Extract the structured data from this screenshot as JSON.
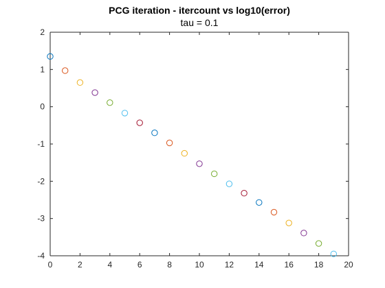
{
  "chart_data": {
    "type": "scatter",
    "title": "PCG iteration - itercount vs log10(error)",
    "subtitle": "tau = 0.1",
    "xlabel": "",
    "ylabel": "",
    "xlim": [
      0,
      20
    ],
    "ylim": [
      -4,
      2
    ],
    "xticks": [
      "0",
      "2",
      "4",
      "6",
      "8",
      "10",
      "12",
      "14",
      "16",
      "18",
      "20"
    ],
    "yticks": [
      "2",
      "1",
      "0",
      "-1",
      "-2",
      "-3",
      "-4"
    ],
    "grid": false,
    "marker": "open-circle",
    "color_cycle": [
      "#0072BD",
      "#D95319",
      "#EDB120",
      "#7E2F8E",
      "#77AC30",
      "#4DBEEE",
      "#A2142F"
    ],
    "points": [
      {
        "x": 0,
        "y": 1.35
      },
      {
        "x": 1,
        "y": 0.97
      },
      {
        "x": 2,
        "y": 0.65
      },
      {
        "x": 3,
        "y": 0.38
      },
      {
        "x": 4,
        "y": 0.11
      },
      {
        "x": 5,
        "y": -0.17
      },
      {
        "x": 6,
        "y": -0.43
      },
      {
        "x": 7,
        "y": -0.7
      },
      {
        "x": 8,
        "y": -0.97
      },
      {
        "x": 9,
        "y": -1.25
      },
      {
        "x": 10,
        "y": -1.53
      },
      {
        "x": 11,
        "y": -1.8
      },
      {
        "x": 12,
        "y": -2.07
      },
      {
        "x": 13,
        "y": -2.32
      },
      {
        "x": 14,
        "y": -2.57
      },
      {
        "x": 15,
        "y": -2.83
      },
      {
        "x": 16,
        "y": -3.12
      },
      {
        "x": 17,
        "y": -3.39
      },
      {
        "x": 18,
        "y": -3.67
      },
      {
        "x": 19,
        "y": -3.95
      }
    ]
  }
}
